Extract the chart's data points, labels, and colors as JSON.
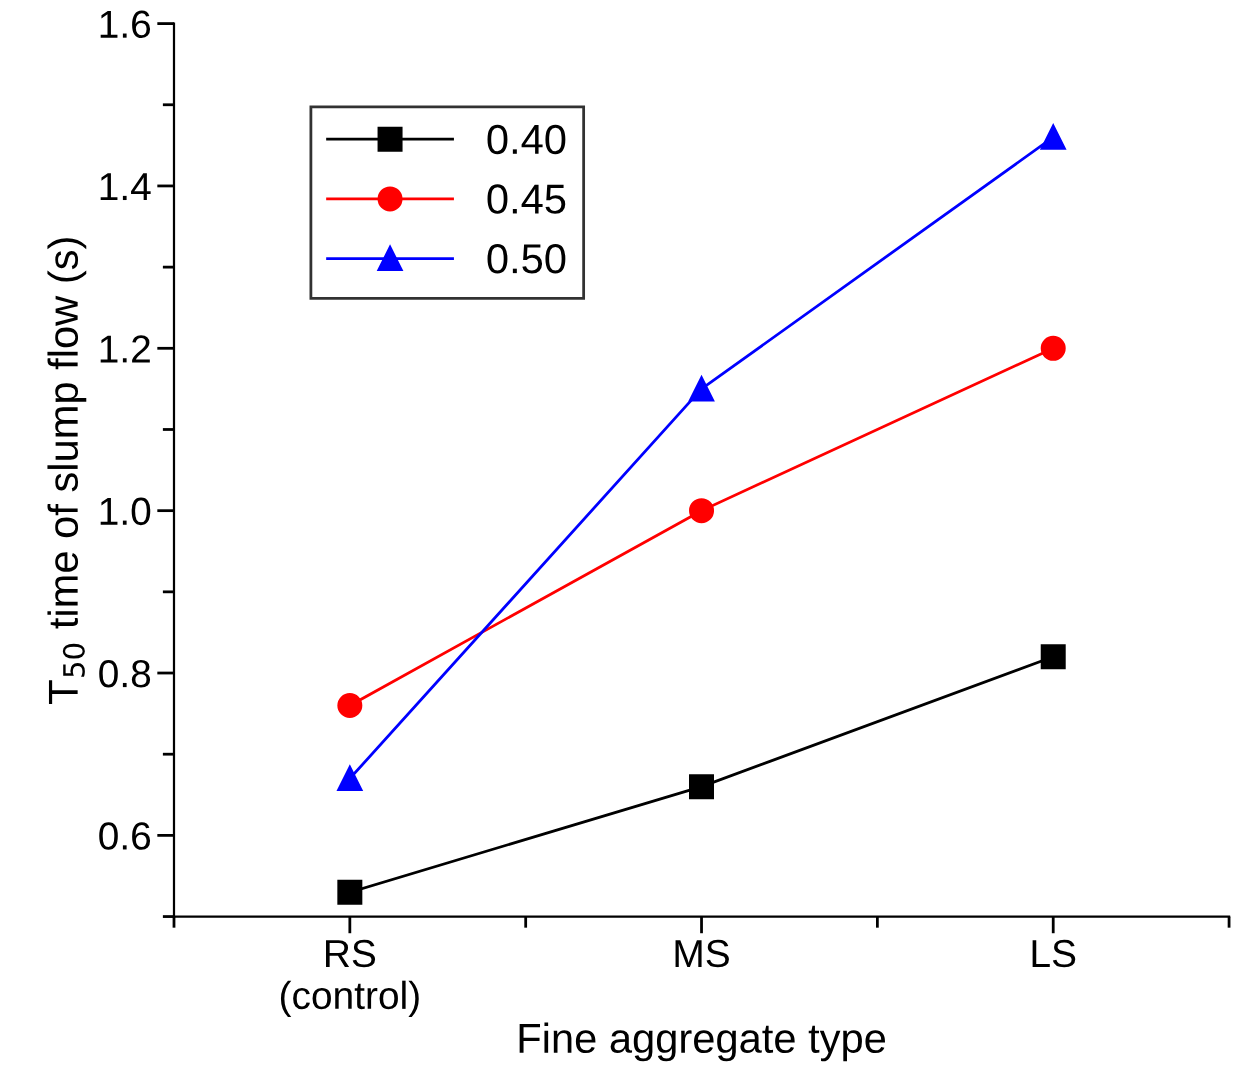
{
  "chart_data": {
    "type": "line",
    "xlabel": "Fine aggregate type",
    "ylabel": "T$_{50}$ time of slump flow (s)",
    "categories": [
      "RS\n(control)",
      "MS",
      "LS"
    ],
    "series": [
      {
        "name": "0.40",
        "color": "#000000",
        "marker": "square",
        "values": [
          0.53,
          0.66,
          0.82
        ]
      },
      {
        "name": "0.45",
        "color": "#ff0000",
        "marker": "circle",
        "values": [
          0.76,
          1.0,
          1.2
        ]
      },
      {
        "name": "0.50",
        "color": "#0000ff",
        "marker": "triangle",
        "values": [
          0.67,
          1.15,
          1.46
        ]
      }
    ],
    "ylim": [
      0.5,
      1.6
    ],
    "yticks": [
      0.6,
      0.8,
      {
        "value": 1.0,
        "label": "1.0"
      },
      1.2,
      1.4,
      1.6
    ],
    "grid": false,
    "legend": "top left",
    "line_style": "solid"
  }
}
